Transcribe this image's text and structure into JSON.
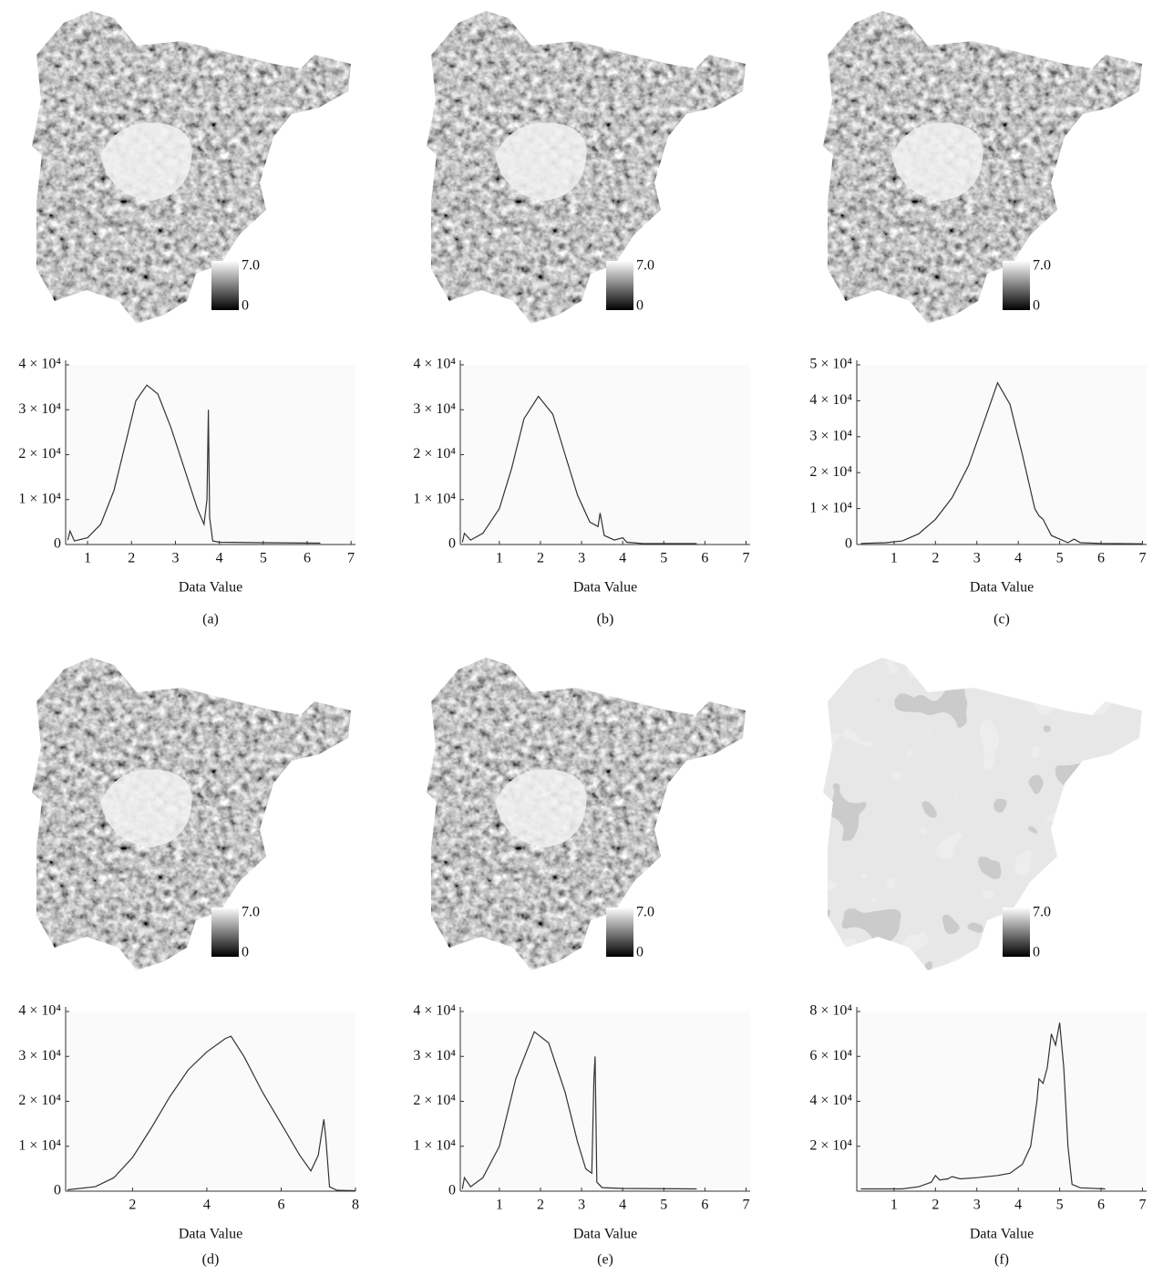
{
  "chart_data": [
    {
      "type": "line",
      "panel_label": "(a)",
      "x_label": "Data Value",
      "color": "#333333",
      "colorbar_ticks": [
        0,
        {
          "value": 7,
          "label": "7.0"
        }
      ],
      "xlim": [
        0.5,
        7.1
      ],
      "xticks": [
        1,
        2,
        3,
        4,
        5,
        6,
        7
      ],
      "ylim": [
        0,
        40000
      ],
      "yticks": [
        0,
        {
          "value": 10000,
          "label": "1 × 10⁴"
        },
        {
          "value": 20000,
          "label": "2 × 10⁴"
        },
        {
          "value": 30000,
          "label": "3 × 10⁴"
        },
        {
          "value": 40000,
          "label": "4 × 10⁴"
        }
      ],
      "x": [
        0.55,
        0.6,
        0.7,
        1.0,
        1.3,
        1.6,
        1.9,
        2.1,
        2.35,
        2.6,
        2.9,
        3.2,
        3.5,
        3.65,
        3.72,
        3.75,
        3.78,
        3.85,
        4.0,
        5.0,
        6.3
      ],
      "values": [
        1000,
        3000,
        800,
        1500,
        4500,
        12000,
        24000,
        32000,
        35500,
        33500,
        26000,
        17000,
        8000,
        4500,
        10000,
        30000,
        6000,
        800,
        500,
        400,
        300
      ]
    },
    {
      "type": "line",
      "panel_label": "(b)",
      "x_label": "Data Value",
      "color": "#333333",
      "colorbar_ticks": [
        0,
        {
          "value": 7,
          "label": "7.0"
        }
      ],
      "xlim": [
        0.05,
        7.1
      ],
      "xticks": [
        1,
        2,
        3,
        4,
        5,
        6,
        7
      ],
      "ylim": [
        0,
        40000
      ],
      "yticks": [
        0,
        {
          "value": 10000,
          "label": "1 × 10⁴"
        },
        {
          "value": 20000,
          "label": "2 × 10⁴"
        },
        {
          "value": 30000,
          "label": "3 × 10⁴"
        },
        {
          "value": 40000,
          "label": "4 × 10⁴"
        }
      ],
      "x": [
        0.1,
        0.15,
        0.3,
        0.6,
        1.0,
        1.3,
        1.6,
        1.95,
        2.3,
        2.6,
        2.9,
        3.2,
        3.4,
        3.45,
        3.55,
        3.8,
        4.0,
        4.1,
        4.5,
        5.8
      ],
      "values": [
        500,
        2500,
        1000,
        2500,
        8000,
        17000,
        28000,
        33000,
        29000,
        20000,
        11000,
        5000,
        4000,
        7000,
        2000,
        1000,
        1500,
        500,
        200,
        200
      ]
    },
    {
      "type": "line",
      "panel_label": "(c)",
      "x_label": "Data Value",
      "color": "#333333",
      "colorbar_ticks": [
        0,
        {
          "value": 7,
          "label": "7.0"
        }
      ],
      "xlim": [
        0.1,
        7.1
      ],
      "xticks": [
        1,
        2,
        3,
        4,
        5,
        6,
        7
      ],
      "ylim": [
        0,
        50000
      ],
      "yticks": [
        0,
        {
          "value": 10000,
          "label": "1 × 10⁴"
        },
        {
          "value": 20000,
          "label": "2 × 10⁴"
        },
        {
          "value": 30000,
          "label": "3 × 10⁴"
        },
        {
          "value": 40000,
          "label": "4 × 10⁴"
        },
        {
          "value": 50000,
          "label": "5 × 10⁴"
        }
      ],
      "x": [
        0.2,
        0.8,
        1.2,
        1.6,
        2.0,
        2.4,
        2.8,
        3.2,
        3.5,
        3.8,
        4.1,
        4.4,
        4.5,
        4.6,
        4.8,
        5.2,
        5.35,
        5.5,
        6.0,
        7.0
      ],
      "values": [
        300,
        500,
        1000,
        3000,
        7000,
        13000,
        22000,
        35000,
        45000,
        39000,
        25000,
        10000,
        8000,
        7000,
        2500,
        500,
        1500,
        500,
        300,
        200
      ]
    },
    {
      "type": "line",
      "panel_label": "(d)",
      "x_label": "Data Value",
      "color": "#333333",
      "colorbar_ticks": [
        0,
        {
          "value": 7,
          "label": "7.0"
        }
      ],
      "xlim": [
        0.2,
        8
      ],
      "xticks": [
        2,
        4,
        6,
        8
      ],
      "ylim": [
        0,
        40000
      ],
      "yticks": [
        0,
        {
          "value": 10000,
          "label": "1 × 10⁴"
        },
        {
          "value": 20000,
          "label": "2 × 10⁴"
        },
        {
          "value": 30000,
          "label": "3 × 10⁴"
        },
        {
          "value": 40000,
          "label": "4 × 10⁴"
        }
      ],
      "x": [
        0.25,
        1,
        1.5,
        2,
        2.5,
        3,
        3.5,
        4,
        4.5,
        4.65,
        5,
        5.5,
        6,
        6.5,
        6.8,
        7.0,
        7.15,
        7.2,
        7.3,
        7.5,
        8
      ],
      "values": [
        300,
        1000,
        3000,
        7500,
        14000,
        21000,
        27000,
        31000,
        34000,
        34500,
        30000,
        22000,
        15000,
        8000,
        4500,
        8000,
        16000,
        12000,
        1000,
        200,
        100
      ]
    },
    {
      "type": "line",
      "panel_label": "(e)",
      "x_label": "Data Value",
      "color": "#333333",
      "colorbar_ticks": [
        0,
        {
          "value": 7,
          "label": "7.0"
        }
      ],
      "xlim": [
        0.05,
        7.1
      ],
      "xticks": [
        1,
        2,
        3,
        4,
        5,
        6,
        7
      ],
      "ylim": [
        0,
        40000
      ],
      "yticks": [
        0,
        {
          "value": 10000,
          "label": "1 × 10⁴"
        },
        {
          "value": 20000,
          "label": "2 × 10⁴"
        },
        {
          "value": 30000,
          "label": "3 × 10⁴"
        },
        {
          "value": 40000,
          "label": "4 × 10⁴"
        }
      ],
      "x": [
        0.1,
        0.15,
        0.3,
        0.6,
        1.0,
        1.4,
        1.85,
        2.2,
        2.6,
        2.9,
        3.1,
        3.25,
        3.3,
        3.33,
        3.37,
        3.5,
        4.0,
        5.8
      ],
      "values": [
        500,
        3000,
        1000,
        3000,
        10000,
        25000,
        35500,
        33000,
        22000,
        11000,
        5000,
        4000,
        25000,
        30000,
        2000,
        800,
        600,
        500
      ]
    },
    {
      "type": "line",
      "panel_label": "(f)",
      "x_label": "Data Value",
      "color": "#333333",
      "colorbar_ticks": [
        0,
        {
          "value": 7,
          "label": "7.0"
        }
      ],
      "xlim": [
        0.1,
        7.1
      ],
      "xticks": [
        1,
        2,
        3,
        4,
        5,
        6,
        7
      ],
      "ylim": [
        0,
        80000
      ],
      "yticks": [
        {
          "value": 20000,
          "label": "2 × 10⁴"
        },
        {
          "value": 40000,
          "label": "4 × 10⁴"
        },
        {
          "value": 60000,
          "label": "6 × 10⁴"
        },
        {
          "value": 80000,
          "label": "8 × 10⁴"
        }
      ],
      "x": [
        0.2,
        1.2,
        1.6,
        1.9,
        2.0,
        2.1,
        2.3,
        2.4,
        2.6,
        3.0,
        3.5,
        3.8,
        4.1,
        4.3,
        4.45,
        4.5,
        4.6,
        4.7,
        4.8,
        4.9,
        5.0,
        5.1,
        5.2,
        5.3,
        5.5,
        6.1
      ],
      "values": [
        1000,
        1000,
        2000,
        4000,
        7000,
        5000,
        5500,
        6500,
        5500,
        6000,
        7000,
        8000,
        12000,
        20000,
        40000,
        50000,
        48000,
        55000,
        70000,
        65000,
        75000,
        55000,
        20000,
        3000,
        1500,
        1000
      ]
    }
  ]
}
